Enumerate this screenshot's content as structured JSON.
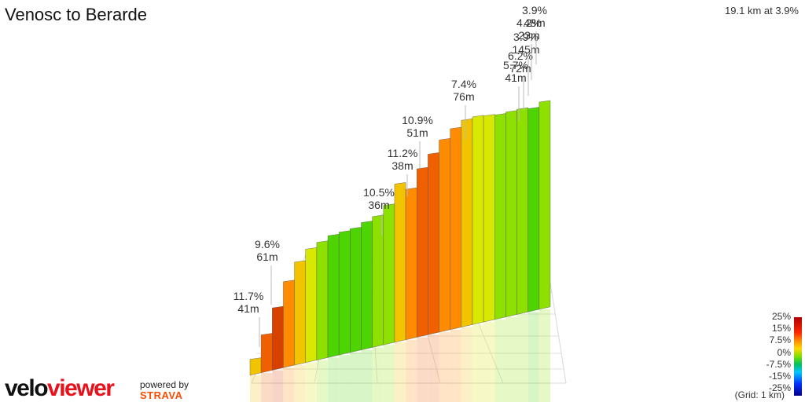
{
  "chart_data": {
    "type": "area",
    "title": "Venosc to Berarde",
    "summary": "19.1 km at 3.9%",
    "grid_note": "(Grid: 1 km)",
    "colorscale": {
      "labels": [
        "25%",
        "15%",
        "7.5%",
        "0%",
        "-7.5%",
        "-15%",
        "-25%"
      ],
      "colors": [
        "#b00000",
        "#ff2a00",
        "#ff8c00",
        "#ffd800",
        "#7ee000",
        "#00c060",
        "#00c8ff",
        "#0030ff",
        "#00008a"
      ]
    },
    "climbs": [
      {
        "grade": "11.7%",
        "elev": "41m"
      },
      {
        "grade": "9.6%",
        "elev": "61m"
      },
      {
        "grade": "10.5%",
        "elev": "36m"
      },
      {
        "grade": "11.2%",
        "elev": "38m"
      },
      {
        "grade": "10.9%",
        "elev": "51m"
      },
      {
        "grade": "7.4%",
        "elev": "76m"
      },
      {
        "grade": "5.7%",
        "elev": "41m"
      },
      {
        "grade": "6.2%",
        "elev": "72m"
      },
      {
        "grade": "3.9%",
        "elev": "145m"
      },
      {
        "grade": "4.2%",
        "elev": "23m"
      },
      {
        "grade": "3.9%",
        "elev": "48m"
      }
    ],
    "segments": [
      {
        "h": 0.05,
        "g": 9
      },
      {
        "h": 0.12,
        "g": 14
      },
      {
        "h": 0.2,
        "g": 15
      },
      {
        "h": 0.28,
        "g": 11
      },
      {
        "h": 0.34,
        "g": 8
      },
      {
        "h": 0.38,
        "g": 6
      },
      {
        "h": 0.4,
        "g": 4
      },
      {
        "h": 0.42,
        "g": 3
      },
      {
        "h": 0.43,
        "g": 3
      },
      {
        "h": 0.44,
        "g": 2
      },
      {
        "h": 0.46,
        "g": 3
      },
      {
        "h": 0.48,
        "g": 4
      },
      {
        "h": 0.52,
        "g": 4
      },
      {
        "h": 0.6,
        "g": 9
      },
      {
        "h": 0.58,
        "g": 10
      },
      {
        "h": 0.66,
        "g": 12
      },
      {
        "h": 0.72,
        "g": 12
      },
      {
        "h": 0.78,
        "g": 11
      },
      {
        "h": 0.83,
        "g": 11
      },
      {
        "h": 0.87,
        "g": 9
      },
      {
        "h": 0.89,
        "g": 7
      },
      {
        "h": 0.9,
        "g": 6
      },
      {
        "h": 0.91,
        "g": 5
      },
      {
        "h": 0.93,
        "g": 4
      },
      {
        "h": 0.95,
        "g": 5
      },
      {
        "h": 0.96,
        "g": 3
      },
      {
        "h": 1.0,
        "g": 4
      }
    ],
    "branding": {
      "logo_part1": "velo",
      "logo_part2": "viewer",
      "powered_by": "powered by",
      "strava": "STRAVA"
    }
  }
}
